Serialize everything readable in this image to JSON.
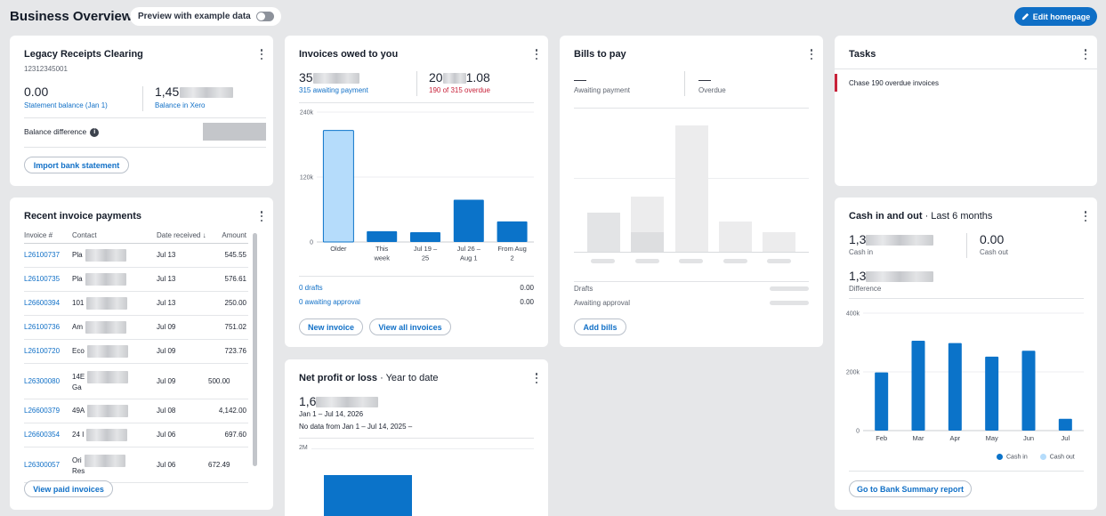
{
  "header": {
    "title": "Business Overview",
    "preview_label": "Preview with example data",
    "edit_label": "Edit homepage"
  },
  "legacy": {
    "title": "Legacy Receipts Clearing",
    "account": "12312345001",
    "statement_value": "0.00",
    "statement_label": "Statement balance (Jan 1)",
    "xero_value": "1,45",
    "xero_label": "Balance in Xero",
    "difference_label": "Balance difference",
    "import_label": "Import bank statement"
  },
  "recent": {
    "title": "Recent invoice payments",
    "columns": [
      "Invoice #",
      "Contact",
      "Date received",
      "Amount"
    ],
    "rows": [
      {
        "invoice": "L26100737",
        "contact": "Pla",
        "date": "Jul 13",
        "amount": "545.55"
      },
      {
        "invoice": "L26100735",
        "contact": "Pla",
        "date": "Jul 13",
        "amount": "576.61"
      },
      {
        "invoice": "L26600394",
        "contact": "101",
        "date": "Jul 13",
        "amount": "250.00"
      },
      {
        "invoice": "L26100736",
        "contact": "Am",
        "date": "Jul 09",
        "amount": "751.02"
      },
      {
        "invoice": "L26100720",
        "contact": "Eco",
        "date": "Jul 09",
        "amount": "723.76"
      },
      {
        "invoice": "L26300080",
        "contact": "14E",
        "contact2": "Ga",
        "date": "Jul 09",
        "amount": "500.00"
      },
      {
        "invoice": "L26600379",
        "contact": "49A",
        "date": "Jul 08",
        "amount": "4,142.00"
      },
      {
        "invoice": "L26600354",
        "contact": "24 I",
        "date": "Jul 06",
        "amount": "697.60"
      },
      {
        "invoice": "L26300057",
        "contact": "Ori",
        "contact2": "Res",
        "date": "Jul 06",
        "amount": "672.49"
      }
    ],
    "view_paid_label": "View paid invoices"
  },
  "invoices": {
    "title": "Invoices owed to you",
    "owed_prefix": "35",
    "owed_label": "315 awaiting payment",
    "overdue_prefix": "20",
    "overdue_suffix": "1.08",
    "overdue_label": "190 of 315 overdue",
    "drafts_label": "0 drafts",
    "drafts_value": "0.00",
    "approval_label": "0 awaiting approval",
    "approval_value": "0.00",
    "new_label": "New invoice",
    "view_all_label": "View all invoices"
  },
  "bills": {
    "title": "Bills to pay",
    "awaiting_value": "—",
    "awaiting_label": "Awaiting payment",
    "overdue_value": "—",
    "overdue_label": "Overdue",
    "drafts_label": "Drafts",
    "approval_label": "Awaiting approval",
    "add_label": "Add bills"
  },
  "tasks": {
    "title": "Tasks",
    "item": "Chase 190 overdue invoices"
  },
  "net": {
    "title": "Net profit or loss",
    "subtitle": "Year to date",
    "value_prefix": "1,6",
    "range": "Jan 1 – Jul 14, 2026",
    "compare": "No data from Jan 1 – Jul 14, 2025",
    "compare_mark": "–",
    "ytick": "2M"
  },
  "cash": {
    "title": "Cash in and out",
    "subtitle": "Last 6 months",
    "in_prefix": "1,3",
    "in_label": "Cash in",
    "out_value": "0.00",
    "out_label": "Cash out",
    "diff_prefix": "1,3",
    "diff_label": "Difference",
    "report_label": "Go to Bank Summary report",
    "legend_in": "Cash in",
    "legend_out": "Cash out"
  },
  "colors": {
    "accent": "#0f6fc6",
    "bar_blue": "#0b73c9",
    "bar_light": "#b5dcfb",
    "overdue_red": "#c8223a"
  },
  "chart_data": [
    {
      "type": "bar",
      "title": "Invoices owed to you",
      "categories": [
        "Older",
        "This week",
        "Jul 19 – 25",
        "Jul 26 – Aug 1",
        "From Aug 2"
      ],
      "category_lines": [
        [
          "Older"
        ],
        [
          "This",
          "week"
        ],
        [
          "Jul 19 –",
          "25"
        ],
        [
          "Jul 26 –",
          "Aug 1"
        ],
        [
          "From Aug",
          "2"
        ]
      ],
      "values": [
        206000,
        20000,
        18000,
        78000,
        38000
      ],
      "highlight": [
        true,
        false,
        false,
        false,
        false
      ],
      "yticks": [
        {
          "v": 0,
          "label": "0"
        },
        {
          "v": 120000,
          "label": "120k"
        },
        {
          "v": 240000,
          "label": "240k"
        }
      ],
      "ylim": [
        0,
        240000
      ]
    },
    {
      "type": "bar",
      "title": "Cash in and out",
      "categories": [
        "Feb",
        "Mar",
        "Apr",
        "May",
        "Jun",
        "Jul"
      ],
      "series": [
        {
          "name": "Cash in",
          "values": [
            198000,
            306000,
            298000,
            252000,
            272000,
            40000
          ]
        },
        {
          "name": "Cash out",
          "values": [
            0,
            0,
            0,
            0,
            0,
            0
          ]
        }
      ],
      "yticks": [
        {
          "v": 0,
          "label": "0"
        },
        {
          "v": 200000,
          "label": "200k"
        },
        {
          "v": 400000,
          "label": "400k"
        }
      ],
      "ylim": [
        0,
        400000
      ],
      "legend": "bottom-right"
    },
    {
      "type": "bar",
      "title": "Net profit or loss",
      "yticks": [
        {
          "v": 2000000,
          "label": "2M"
        }
      ]
    }
  ]
}
